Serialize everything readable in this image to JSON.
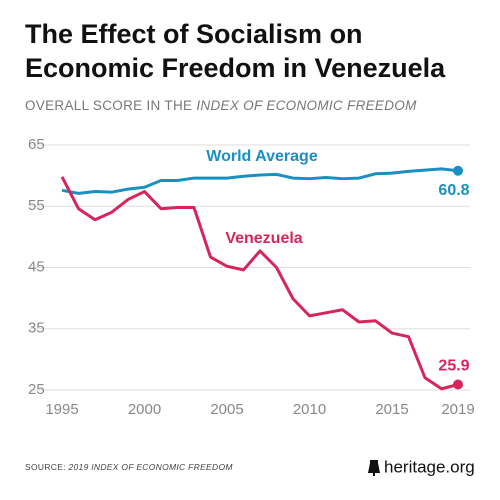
{
  "chart_data": {
    "type": "line",
    "title_lines": [
      "The Effect of Socialism on",
      "Economic Freedom in Venezuela"
    ],
    "subtitle": "OVERALL SCORE IN THE ",
    "subtitle_italic": "INDEX OF ECONOMIC FREEDOM",
    "source": "SOURCE: ",
    "source_italic": "2019 INDEX OF ECONOMIC FREEDOM",
    "logo": "heritage.org",
    "x": [
      1995,
      1996,
      1997,
      1998,
      1999,
      2000,
      2001,
      2002,
      2003,
      2004,
      2005,
      2006,
      2007,
      2008,
      2009,
      2010,
      2011,
      2012,
      2013,
      2014,
      2015,
      2016,
      2017,
      2018,
      2019
    ],
    "xlim": [
      1995,
      2019
    ],
    "xticks": [
      1995,
      2000,
      2005,
      2010,
      2015,
      2019
    ],
    "ylim": [
      25,
      65
    ],
    "yticks": [
      25,
      35,
      45,
      55,
      65
    ],
    "grid": true,
    "series": [
      {
        "name": "World Average",
        "color": "#1a8fc1",
        "values": [
          57.6,
          57.1,
          57.4,
          57.3,
          57.8,
          58.1,
          59.2,
          59.2,
          59.6,
          59.6,
          59.6,
          59.9,
          60.1,
          60.2,
          59.6,
          59.5,
          59.7,
          59.5,
          59.6,
          60.3,
          60.4,
          60.7,
          60.9,
          61.1,
          60.8
        ]
      },
      {
        "name": "Venezuela",
        "color": "#d7245b",
        "values": [
          59.8,
          54.6,
          52.8,
          54.0,
          56.1,
          57.4,
          54.6,
          54.8,
          54.8,
          46.7,
          45.2,
          44.6,
          47.7,
          45.0,
          39.9,
          37.1,
          37.6,
          38.1,
          36.1,
          36.3,
          34.3,
          33.7,
          27.0,
          25.2,
          25.9
        ]
      }
    ]
  }
}
